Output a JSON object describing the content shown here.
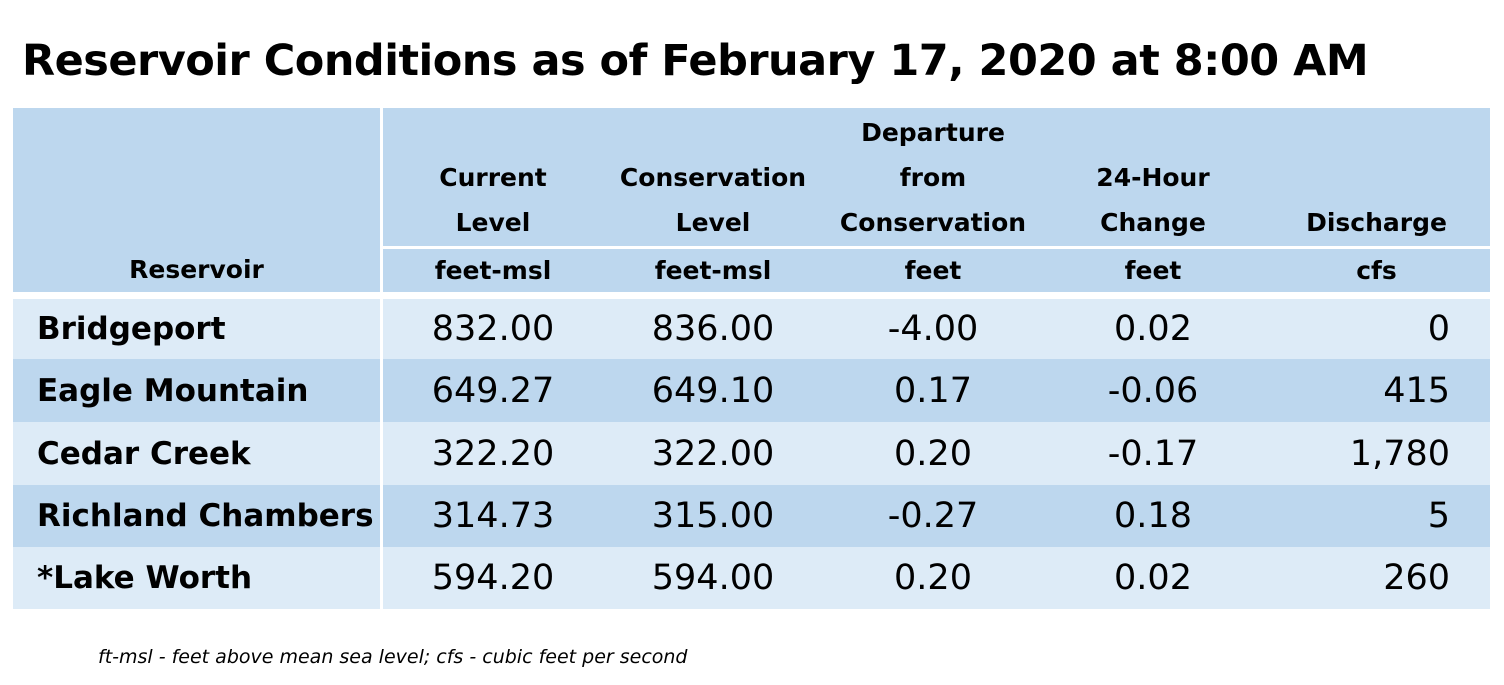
{
  "title": "Reservoir Conditions as of February 17, 2020 at 8:00 AM",
  "header": {
    "reservoir": "Reservoir",
    "columns": [
      {
        "lines": [
          "Current",
          "Level"
        ],
        "unit": "feet-msl"
      },
      {
        "lines": [
          "Conservation",
          "Level"
        ],
        "unit": "feet-msl"
      },
      {
        "lines": [
          "Departure",
          "from",
          "Conservation"
        ],
        "unit": "feet"
      },
      {
        "lines": [
          "24-Hour",
          "Change"
        ],
        "unit": "feet"
      },
      {
        "lines": [
          "Discharge"
        ],
        "unit": "cfs"
      }
    ]
  },
  "rows": [
    {
      "name": "Bridgeport",
      "current": "832.00",
      "conservation": "836.00",
      "departure": "-4.00",
      "change": "0.02",
      "discharge": "0"
    },
    {
      "name": "Eagle Mountain",
      "current": "649.27",
      "conservation": "649.10",
      "departure": "0.17",
      "change": "-0.06",
      "discharge": "415"
    },
    {
      "name": "Cedar Creek",
      "current": "322.20",
      "conservation": "322.00",
      "departure": "0.20",
      "change": "-0.17",
      "discharge": "1,780"
    },
    {
      "name": "Richland Chambers",
      "current": "314.73",
      "conservation": "315.00",
      "departure": "-0.27",
      "change": "0.18",
      "discharge": "5"
    },
    {
      "name": "*Lake Worth",
      "current": "594.20",
      "conservation": "594.00",
      "departure": "0.20",
      "change": "0.02",
      "discharge": "260"
    }
  ],
  "footnote": "ft-msl - feet above mean sea level; cfs - cubic feet per second",
  "colors": {
    "header_bg": "#bdd7ee",
    "row_light": "#ddebf7",
    "row_dark": "#bdd7ee"
  }
}
